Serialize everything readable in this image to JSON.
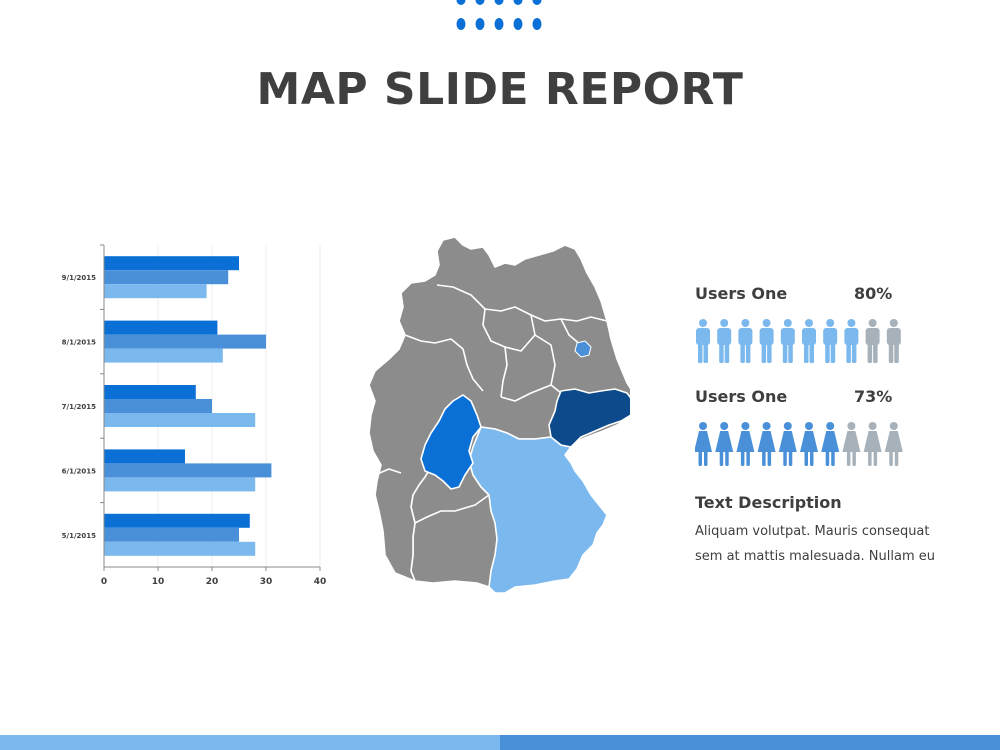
{
  "title": "MAP SLIDE REPORT",
  "colors": {
    "dark_blue": "#0b70d6",
    "mid_blue": "#4a90d9",
    "light_blue": "#7ab8ee",
    "navy": "#0c4a8c",
    "gray": "#8c8c8c",
    "person_gray": "#a6b1ba",
    "text": "#3f3f3f",
    "footer_left": "#7ab8ee",
    "footer_right": "#4a90d9"
  },
  "chart_data": {
    "type": "bar",
    "orientation": "horizontal",
    "categories": [
      "9/1/2015",
      "8/1/2015",
      "7/1/2015",
      "6/1/2015",
      "5/1/2015"
    ],
    "series": [
      {
        "color": "#0b70d6",
        "values": [
          25,
          21,
          17,
          15,
          27
        ]
      },
      {
        "color": "#4a90d9",
        "values": [
          23,
          30,
          20,
          31,
          25
        ]
      },
      {
        "color": "#7ab8ee",
        "values": [
          19,
          22,
          28,
          28,
          28
        ]
      }
    ],
    "xlim": [
      0,
      40
    ],
    "xticks": [
      "0",
      "10",
      "20",
      "30",
      "40"
    ],
    "grid": true,
    "legend": "none"
  },
  "map": {
    "regions": [
      {
        "name": "hesse",
        "color": "#0b70d6"
      },
      {
        "name": "saxony",
        "color": "#0c4a8c"
      },
      {
        "name": "bavaria",
        "color": "#7ab8ee"
      },
      {
        "name": "berlin",
        "color": "#4a90d9"
      }
    ],
    "base_color": "#8c8c8c"
  },
  "stats": [
    {
      "label": "Users One",
      "percent": "80%",
      "figure": "male",
      "total": 10,
      "filled": 8
    },
    {
      "label": "Users One",
      "percent": "73%",
      "figure": "female",
      "total": 10,
      "filled": 7
    }
  ],
  "description": {
    "title": "Text Description",
    "text": "Aliquam volutpat. Mauris consequat sem at mattis malesuada. Nullam eu"
  },
  "decoration": {
    "icon": "dots-icon"
  }
}
